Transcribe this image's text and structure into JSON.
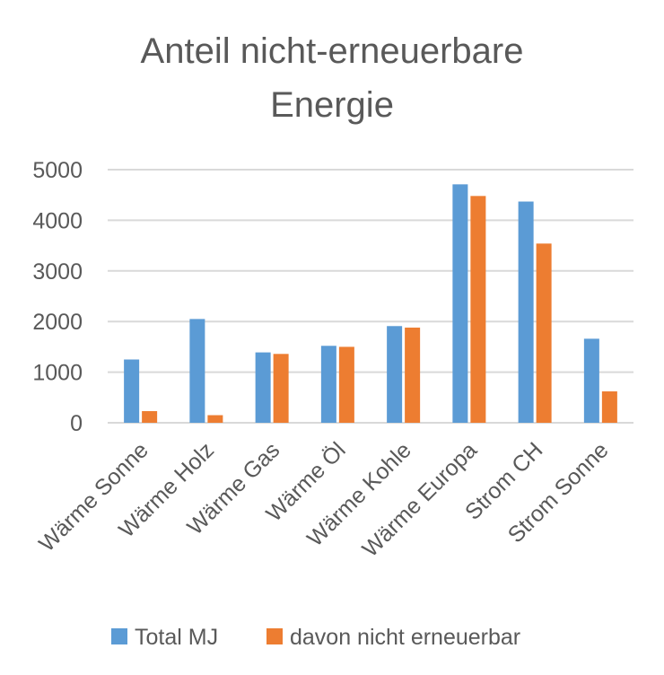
{
  "chart_data": {
    "type": "bar",
    "title_lines": [
      "Anteil nicht-erneuerbare",
      "Energie"
    ],
    "categories": [
      "Wärme Sonne",
      "Wärme Holz",
      "Wärme Gas",
      "Wärme Öl",
      "Wärme Kohle",
      "Wärme Europa",
      "Strom CH",
      "Strom Sonne"
    ],
    "series": [
      {
        "name": "Total MJ",
        "color": "#5b9bd5",
        "values": [
          1250,
          2050,
          1390,
          1520,
          1910,
          4710,
          4370,
          1660
        ]
      },
      {
        "name": "davon nicht erneuerbar",
        "color": "#ed7d31",
        "values": [
          230,
          150,
          1360,
          1500,
          1880,
          4480,
          3540,
          620
        ]
      }
    ],
    "ylim": [
      0,
      5000
    ],
    "yticks": [
      0,
      1000,
      2000,
      3000,
      4000,
      5000
    ],
    "xlabel": "",
    "ylabel": "",
    "grid": true,
    "legend_position": "bottom"
  }
}
